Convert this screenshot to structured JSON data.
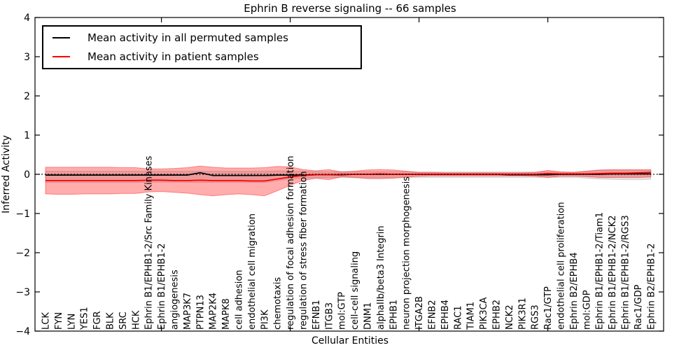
{
  "chart_data": {
    "type": "line",
    "title": "Ephrin B reverse signaling -- 66 samples",
    "xlabel": "Cellular Entities",
    "ylabel": "Inferred Activity",
    "ylim": [
      -4,
      4
    ],
    "ytick_values": [
      4,
      3,
      2,
      1,
      0,
      -1,
      -2,
      -3,
      -4
    ],
    "ytick_labels": [
      "4",
      "3",
      "2",
      "1",
      "0",
      "−1",
      "−2",
      "−3",
      "−4"
    ],
    "major_tick_indices": [
      9,
      19,
      29,
      39
    ],
    "grid": false,
    "legend_position": "upper left",
    "zero_line": {
      "value": 0,
      "style": "dotted",
      "color": "#000000"
    },
    "categories": [
      "LCK",
      "FYN",
      "LYN",
      "YES1",
      "FGR",
      "BLK",
      "SRC",
      "HCK",
      "Ephrin B1/EPHB1-2/Src Family Kinases",
      "Ephrin B1/EPHB1-2",
      "angiogenesis",
      "MAP3K7",
      "PTPN13",
      "MAP2K4",
      "MAPK8",
      "cell adhesion",
      "endothelial cell migration",
      "PI3K",
      "chemotaxis",
      "regulation of focal adhesion formation",
      "regulation of stress fiber formation",
      "EFNB1",
      "ITGB3",
      "mol:GTP",
      "cell-cell signaling",
      "DNM1",
      "alphaIIb/beta3 Integrin",
      "EPHB1",
      "neuron projection morphogenesis",
      "ITGA2B",
      "EFNB2",
      "EPHB4",
      "RAC1",
      "TIAM1",
      "PIK3CA",
      "EPHB2",
      "NCK2",
      "PIK3R1",
      "RGS3",
      "Rac1/GTP",
      "endothelial cell proliferation",
      "Ephrin B2/EPHB4",
      "mol:GDP",
      "Ephrin B1/EPHB1-2/Tiam1",
      "Ephrin B1/EPHB1-2/NCK2",
      "Ephrin B1/EPHB1-2/RGS3",
      "Rac1/GDP",
      "Ephrin B2/EPHB1-2"
    ],
    "series": [
      {
        "name": "Mean activity in all permuted samples",
        "color": "#000000",
        "values": [
          -0.02,
          -0.02,
          -0.02,
          -0.02,
          -0.02,
          -0.02,
          -0.02,
          -0.02,
          -0.02,
          -0.02,
          -0.02,
          -0.02,
          0.04,
          -0.03,
          -0.03,
          -0.03,
          -0.03,
          -0.03,
          -0.02,
          -0.02,
          -0.02,
          -0.01,
          -0.01,
          -0.01,
          0,
          0,
          0,
          0,
          0,
          0,
          0,
          0,
          0,
          0,
          0,
          0,
          -0.01,
          -0.01,
          -0.01,
          -0.01,
          0,
          0,
          0,
          0,
          0.01,
          0.01,
          0.01,
          0.01
        ]
      },
      {
        "name": "Mean activity in patient samples",
        "color": "#ff0000",
        "values": [
          -0.16,
          -0.16,
          -0.16,
          -0.16,
          -0.16,
          -0.16,
          -0.16,
          -0.16,
          -0.15,
          -0.15,
          -0.16,
          -0.16,
          -0.15,
          -0.16,
          -0.16,
          -0.16,
          -0.17,
          -0.17,
          -0.12,
          -0.07,
          -0.03,
          -0.01,
          -0.01,
          0,
          0,
          0,
          0.01,
          0,
          0,
          0,
          0,
          0,
          0,
          0,
          0,
          0,
          0,
          0,
          0,
          0.02,
          0.01,
          0.01,
          0.01,
          0.02,
          0.03,
          0.03,
          0.04,
          0.05
        ]
      }
    ],
    "bands": [
      {
        "name": "permuted-std-band",
        "fill": "rgba(0,0,0,0.11)",
        "edge": "rgba(0,0,0,0.12)",
        "top": [
          0.08,
          0.08,
          0.08,
          0.08,
          0.08,
          0.08,
          0.08,
          0.08,
          0.08,
          0.08,
          0.08,
          0.08,
          0.08,
          0.08,
          0.08,
          0.08,
          0.08,
          0.08,
          0.09,
          0.09,
          0.08,
          0.07,
          0.07,
          0.07,
          0.07,
          0.07,
          0.07,
          0.07,
          0.07,
          0.06,
          0.06,
          0.06,
          0.06,
          0.06,
          0.06,
          0.06,
          0.06,
          0.06,
          0.06,
          0.07,
          0.06,
          0.06,
          0.08,
          0.1,
          0.1,
          0.1,
          0.1,
          0.1
        ],
        "bottom": [
          -0.21,
          -0.21,
          -0.21,
          -0.21,
          -0.21,
          -0.21,
          -0.21,
          -0.21,
          -0.2,
          -0.2,
          -0.2,
          -0.21,
          -0.21,
          -0.21,
          -0.21,
          -0.21,
          -0.21,
          -0.21,
          -0.16,
          -0.12,
          -0.1,
          -0.09,
          -0.09,
          -0.09,
          -0.09,
          -0.09,
          -0.09,
          -0.09,
          -0.09,
          -0.08,
          -0.08,
          -0.08,
          -0.08,
          -0.08,
          -0.08,
          -0.08,
          -0.08,
          -0.08,
          -0.08,
          -0.08,
          -0.08,
          -0.08,
          -0.1,
          -0.12,
          -0.13,
          -0.14,
          -0.14,
          -0.13
        ]
      },
      {
        "name": "patient-std-band",
        "fill": "rgba(255,0,0,0.32)",
        "edge": "rgba(255,0,0,0.40)",
        "top": [
          0.18,
          0.18,
          0.18,
          0.18,
          0.18,
          0.18,
          0.17,
          0.17,
          0.14,
          0.14,
          0.15,
          0.17,
          0.21,
          0.18,
          0.16,
          0.16,
          0.16,
          0.17,
          0.2,
          0.19,
          0.12,
          0.09,
          0.12,
          0.06,
          0.08,
          0.11,
          0.12,
          0.11,
          0.08,
          0.05,
          0.05,
          0.04,
          0.04,
          0.04,
          0.04,
          0.04,
          0.04,
          0.04,
          0.05,
          0.1,
          0.06,
          0.05,
          0.08,
          0.11,
          0.12,
          0.12,
          0.12,
          0.12
        ],
        "bottom": [
          -0.5,
          -0.51,
          -0.51,
          -0.5,
          -0.5,
          -0.5,
          -0.49,
          -0.49,
          -0.45,
          -0.44,
          -0.46,
          -0.48,
          -0.52,
          -0.55,
          -0.52,
          -0.5,
          -0.52,
          -0.55,
          -0.42,
          -0.28,
          -0.16,
          -0.1,
          -0.14,
          -0.06,
          -0.08,
          -0.11,
          -0.11,
          -0.1,
          -0.07,
          -0.05,
          -0.04,
          -0.04,
          -0.04,
          -0.04,
          -0.04,
          -0.04,
          -0.04,
          -0.04,
          -0.05,
          -0.08,
          -0.05,
          -0.05,
          -0.06,
          -0.08,
          -0.08,
          -0.08,
          -0.08,
          -0.07
        ]
      }
    ]
  }
}
